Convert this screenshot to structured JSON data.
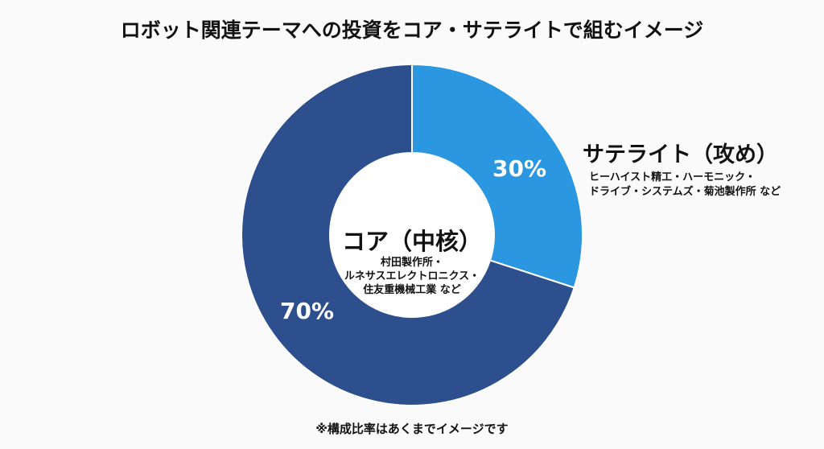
{
  "chart_data": {
    "type": "pie",
    "variant": "donut",
    "title": "ロボット関連テーマへの投資をコア・サテライトで組むイメージ",
    "slices": [
      {
        "name": "サテライト（攻め）",
        "value": 30,
        "label": "30%",
        "color": "#2a97e0",
        "description": [
          "ヒーハイスト精工・ハーモニック・",
          "ドライブ・システムズ・菊池製作所 など"
        ]
      },
      {
        "name": "コア（中核）",
        "value": 70,
        "label": "70%",
        "color": "#2e4f8e",
        "description": [
          "村田製作所・",
          "ルネサスエレクトロニクス・",
          "住友重機械工業 など"
        ]
      }
    ],
    "footnote": "※構成比率はあくまでイメージです"
  }
}
